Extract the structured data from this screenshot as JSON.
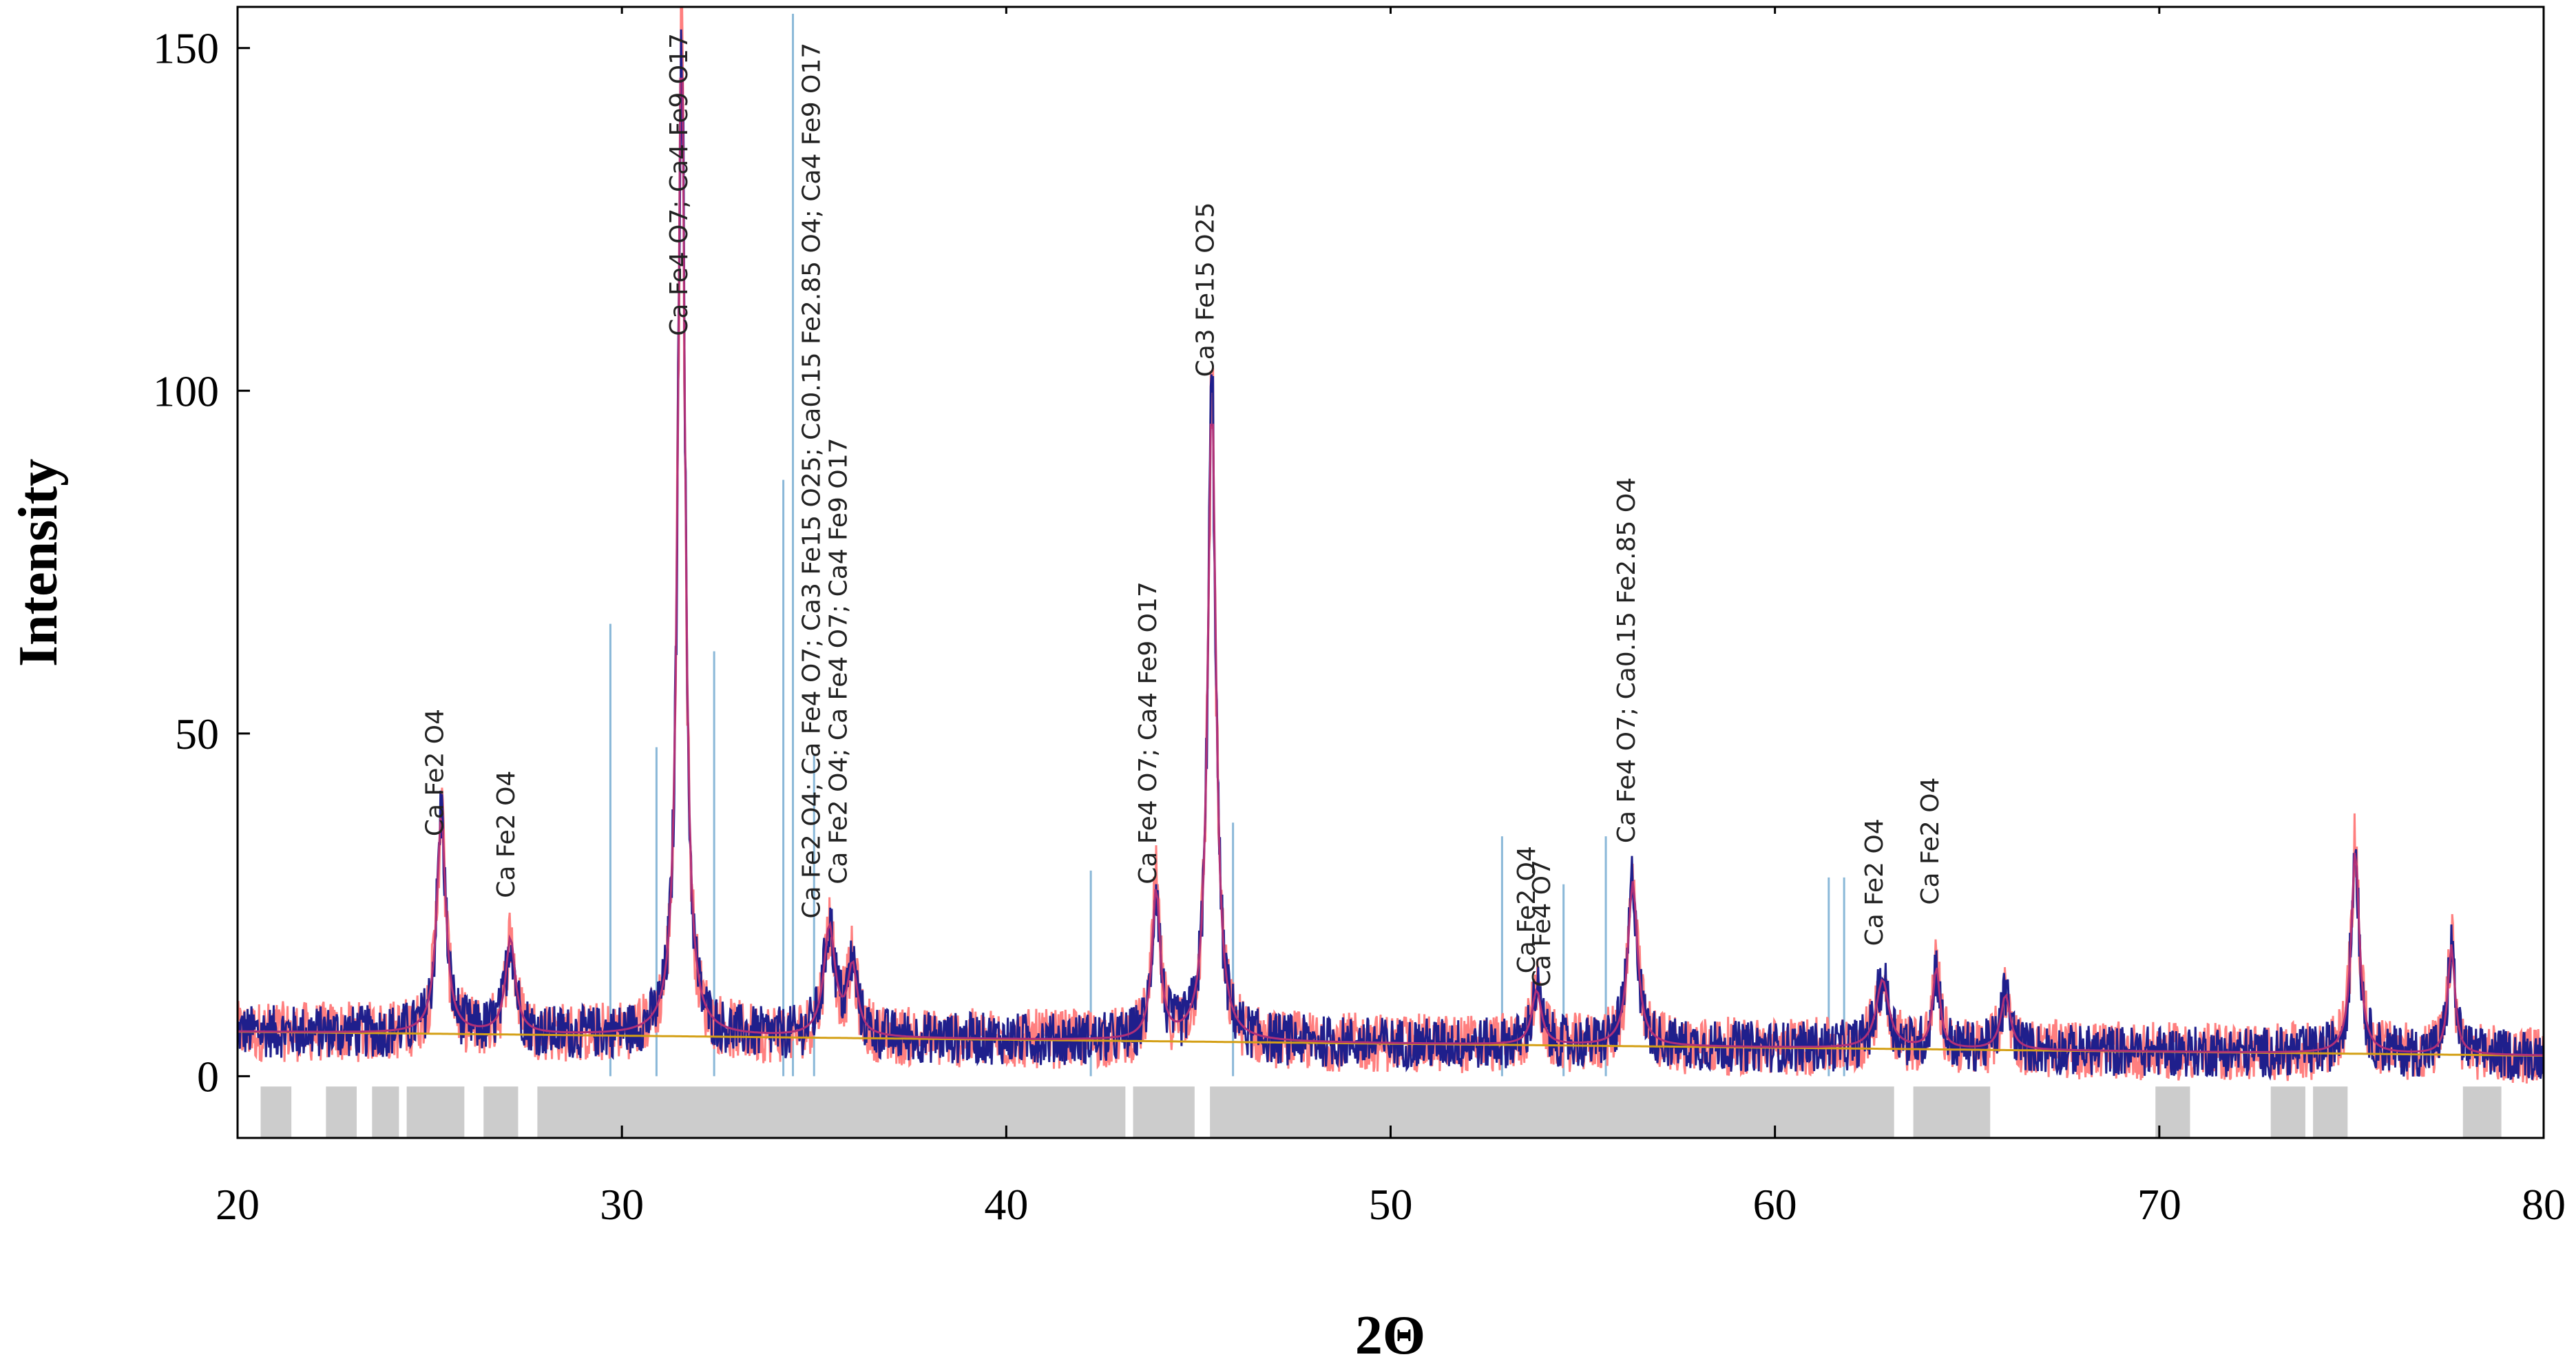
{
  "chart_data": {
    "type": "line",
    "title": "",
    "xlabel": "2Θ",
    "ylabel": "Intensity",
    "xlim": [
      20,
      80
    ],
    "ylim": [
      -9,
      156
    ],
    "x_ticks": [
      20,
      30,
      40,
      50,
      60,
      70,
      80
    ],
    "y_ticks": [
      0,
      50,
      100,
      150
    ],
    "grid": false,
    "legend": "none",
    "colors": {
      "observed": "#1f1f8c",
      "calculated": "#ff7f7f",
      "fit": "#b03078",
      "background": "#d4a017",
      "reference_sticks": "#8ab8d8",
      "excluded_regions": "#cccccc",
      "axis": "#000000",
      "label_text": "#222222"
    },
    "peaks": [
      {
        "x": 25.3,
        "y": 32,
        "width": 0.28
      },
      {
        "x": 27.1,
        "y": 14,
        "width": 0.3
      },
      {
        "x": 31.55,
        "y": 150,
        "width": 0.22
      },
      {
        "x": 35.4,
        "y": 16,
        "width": 0.35
      },
      {
        "x": 36.0,
        "y": 10,
        "width": 0.3
      },
      {
        "x": 43.9,
        "y": 22,
        "width": 0.25
      },
      {
        "x": 45.35,
        "y": 95,
        "width": 0.25
      },
      {
        "x": 53.8,
        "y": 8,
        "width": 0.3
      },
      {
        "x": 56.3,
        "y": 24,
        "width": 0.3
      },
      {
        "x": 62.8,
        "y": 10,
        "width": 0.4
      },
      {
        "x": 64.2,
        "y": 12,
        "width": 0.22
      },
      {
        "x": 66.0,
        "y": 8,
        "width": 0.3
      },
      {
        "x": 75.1,
        "y": 30,
        "width": 0.25
      },
      {
        "x": 77.6,
        "y": 16,
        "width": 0.22
      }
    ],
    "background_level": {
      "start": 6.5,
      "end": 3.0
    },
    "noise_amplitude": 3.5,
    "reference_sticks": [
      {
        "x": 29.7,
        "y": 66
      },
      {
        "x": 30.9,
        "y": 48
      },
      {
        "x": 32.4,
        "y": 62
      },
      {
        "x": 34.2,
        "y": 87
      },
      {
        "x": 34.45,
        "y": 155
      },
      {
        "x": 35.0,
        "y": 47
      },
      {
        "x": 42.2,
        "y": 30
      },
      {
        "x": 45.9,
        "y": 37
      },
      {
        "x": 52.9,
        "y": 35
      },
      {
        "x": 54.5,
        "y": 28
      },
      {
        "x": 55.6,
        "y": 35
      },
      {
        "x": 61.4,
        "y": 29
      },
      {
        "x": 61.8,
        "y": 29
      }
    ],
    "excluded_regions": [
      [
        20.6,
        21.4
      ],
      [
        22.3,
        23.1
      ],
      [
        23.5,
        24.2
      ],
      [
        24.4,
        25.9
      ],
      [
        26.4,
        27.3
      ],
      [
        27.8,
        43.1
      ],
      [
        43.3,
        44.9
      ],
      [
        45.3,
        63.1
      ],
      [
        63.6,
        65.6
      ],
      [
        69.9,
        70.8
      ],
      [
        72.9,
        73.8
      ],
      [
        74.0,
        74.9
      ],
      [
        77.9,
        78.9
      ]
    ],
    "annotations": [
      {
        "text": "Ca Fe2 O4",
        "x": 25.35,
        "y": 35
      },
      {
        "text": "Ca Fe2 O4",
        "x": 27.2,
        "y": 26
      },
      {
        "text": "Ca Fe4 O7; Ca4 Fe9 O17",
        "x": 31.7,
        "y": 108
      },
      {
        "text": "Ca Fe2 O4; Ca Fe4 O7; Ca3 Fe15 O25; Ca0.15 Fe2.85 O4; Ca4 Fe9 O17",
        "x": 35.15,
        "y": 23
      },
      {
        "text": "Ca Fe2 O4; Ca Fe4 O7; Ca4 Fe9 O17",
        "x": 35.85,
        "y": 28
      },
      {
        "text": "Ca Fe4 O7; Ca4 Fe9 O17",
        "x": 43.9,
        "y": 28
      },
      {
        "text": "Ca3 Fe15 O25",
        "x": 45.4,
        "y": 102
      },
      {
        "text": "Ca Fe2 O4",
        "x": 53.75,
        "y": 15
      },
      {
        "text": "Ca Fe4 O7",
        "x": 54.15,
        "y": 13
      },
      {
        "text": "Ca Fe4 O7; Ca0.15 Fe2.85 O4",
        "x": 56.35,
        "y": 34
      },
      {
        "text": "Ca Fe2 O4",
        "x": 62.8,
        "y": 19
      },
      {
        "text": "Ca Fe2 O4",
        "x": 64.25,
        "y": 25
      }
    ]
  }
}
